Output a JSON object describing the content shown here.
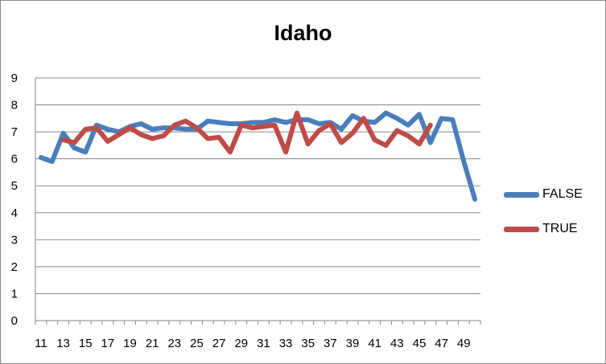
{
  "chart_data": {
    "type": "line",
    "title": "Idaho",
    "xlabel": "",
    "ylabel": "",
    "ylim": [
      0,
      9
    ],
    "yticks": [
      0,
      1,
      2,
      3,
      4,
      5,
      6,
      7,
      8,
      9
    ],
    "xtick_labels": [
      "11",
      "13",
      "15",
      "17",
      "19",
      "21",
      "23",
      "25",
      "27",
      "29",
      "31",
      "33",
      "35",
      "37",
      "39",
      "41",
      "43",
      "45",
      "47",
      "49"
    ],
    "grid": "horizontal",
    "legend_position": "right",
    "x": [
      11,
      12,
      13,
      14,
      15,
      16,
      17,
      18,
      19,
      20,
      21,
      22,
      23,
      24,
      25,
      26,
      27,
      28,
      29,
      30,
      31,
      32,
      33,
      34,
      35,
      36,
      37,
      38,
      39,
      40,
      41,
      42,
      43,
      44,
      45,
      46,
      47,
      48,
      49,
      50
    ],
    "series": [
      {
        "name": "FALSE",
        "color": "#4a7ebb",
        "values": [
          6.05,
          5.9,
          6.95,
          6.4,
          6.25,
          7.25,
          7.1,
          7.0,
          7.2,
          7.3,
          7.1,
          7.15,
          7.15,
          7.1,
          7.1,
          7.4,
          7.35,
          7.3,
          7.3,
          7.35,
          7.35,
          7.45,
          7.35,
          7.45,
          7.45,
          7.3,
          7.35,
          7.1,
          7.6,
          7.4,
          7.35,
          7.7,
          7.5,
          7.25,
          7.65,
          6.6,
          7.5,
          7.45,
          5.9,
          4.5
        ]
      },
      {
        "name": "TRUE",
        "color": "#be4b48",
        "values": [
          null,
          null,
          6.7,
          6.6,
          7.1,
          7.15,
          6.65,
          6.9,
          7.15,
          6.9,
          6.75,
          6.85,
          7.25,
          7.4,
          7.15,
          6.75,
          6.8,
          6.25,
          7.25,
          7.15,
          7.2,
          7.25,
          6.25,
          7.7,
          6.55,
          7.05,
          7.3,
          6.6,
          6.95,
          7.5,
          6.7,
          6.5,
          7.05,
          6.85,
          6.55,
          7.25,
          null,
          null,
          null,
          null
        ]
      }
    ]
  }
}
